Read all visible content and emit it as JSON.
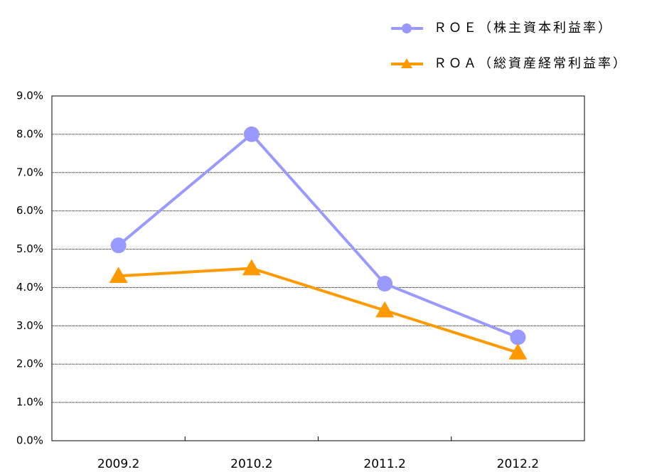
{
  "chart_data": {
    "type": "line",
    "categories": [
      "2009.2",
      "2010.2",
      "2011.2",
      "2012.2"
    ],
    "series": [
      {
        "name": "ＲＯＥ（株主資本利益率）",
        "color": "#9999ff",
        "marker": "circle",
        "values": [
          5.1,
          8.0,
          4.1,
          2.7
        ]
      },
      {
        "name": "ＲＯＡ（総資産経常利益率）",
        "color": "#ff9900",
        "marker": "triangle",
        "values": [
          4.3,
          4.5,
          3.4,
          2.3
        ]
      }
    ],
    "ylim": [
      0,
      9
    ],
    "yticks": [
      {
        "value": 0,
        "label": "0.0%"
      },
      {
        "value": 1,
        "label": "1.0%"
      },
      {
        "value": 2,
        "label": "2.0%"
      },
      {
        "value": 3,
        "label": "3.0%"
      },
      {
        "value": 4,
        "label": "4.0%"
      },
      {
        "value": 5,
        "label": "5.0%"
      },
      {
        "value": 6,
        "label": "6.0%"
      },
      {
        "value": 7,
        "label": "7.0%"
      },
      {
        "value": 8,
        "label": "8.0%"
      },
      {
        "value": 9,
        "label": "9.0%"
      }
    ],
    "grid": true,
    "legend": "upper right"
  }
}
